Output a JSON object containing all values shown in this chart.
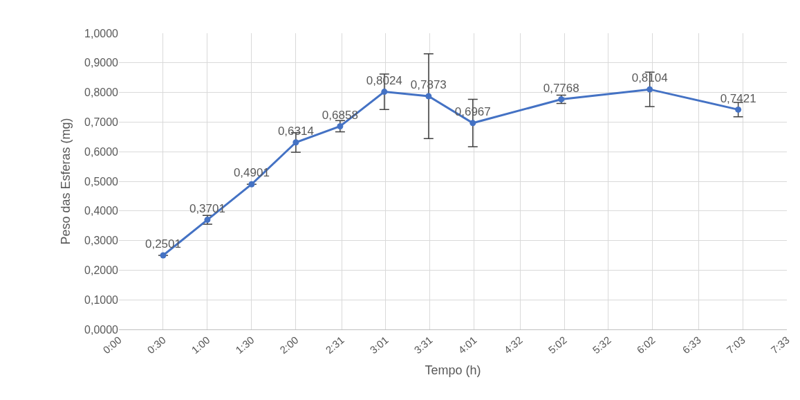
{
  "chart_data": {
    "type": "line",
    "xlabel": "Tempo (h)",
    "ylabel": "Peso das Esferas (mg)",
    "x": [
      0.5,
      1.0,
      1.5,
      2.0,
      2.5,
      3.0,
      3.5,
      4.0,
      5.0,
      6.0,
      7.0
    ],
    "values": [
      0.2501,
      0.3701,
      0.4901,
      0.6314,
      0.6858,
      0.8024,
      0.7873,
      0.6967,
      0.7768,
      0.8104,
      0.7421
    ],
    "errors": [
      null,
      0.015,
      null,
      0.033,
      0.019,
      0.06,
      0.143,
      0.08,
      0.014,
      0.058,
      0.024
    ],
    "value_labels": [
      "0,2501",
      "0,3701",
      "0,4901",
      "0,6314",
      "0,6858",
      "0,8024",
      "0,7873",
      "0,6967",
      "0,7768",
      "0,8104",
      "0,7421"
    ],
    "color": "#4472c4",
    "marker": "circle",
    "line_style": "solid",
    "grid": true,
    "xlim": [
      0,
      7.55
    ],
    "xticks": [
      {
        "value": 0,
        "label": "0:00"
      },
      {
        "value": 0.5,
        "label": "0:30"
      },
      {
        "value": 1,
        "label": "1:00"
      },
      {
        "value": 1.5,
        "label": "1:30"
      },
      {
        "value": 2,
        "label": "2:00"
      },
      {
        "value": 2.5167,
        "label": "2:31"
      },
      {
        "value": 3.0167,
        "label": "3:01"
      },
      {
        "value": 3.5167,
        "label": "3:31"
      },
      {
        "value": 4.0167,
        "label": "4:01"
      },
      {
        "value": 4.5333,
        "label": "4:32"
      },
      {
        "value": 5.0333,
        "label": "5:02"
      },
      {
        "value": 5.5333,
        "label": "5:32"
      },
      {
        "value": 6.0333,
        "label": "6:02"
      },
      {
        "value": 6.55,
        "label": "6:33"
      },
      {
        "value": 7.05,
        "label": "7:03"
      },
      {
        "value": 7.55,
        "label": "7:33"
      }
    ],
    "ylim": [
      0,
      1
    ],
    "yticks": [
      {
        "value": 0,
        "label": "0,0000"
      },
      {
        "value": 0.1,
        "label": "0,1000"
      },
      {
        "value": 0.2,
        "label": "0,2000"
      },
      {
        "value": 0.3,
        "label": "0,3000"
      },
      {
        "value": 0.4,
        "label": "0,4000"
      },
      {
        "value": 0.5,
        "label": "0,5000"
      },
      {
        "value": 0.6,
        "label": "0,6000"
      },
      {
        "value": 0.7,
        "label": "0,7000"
      },
      {
        "value": 0.8,
        "label": "0,8000"
      },
      {
        "value": 0.9,
        "label": "0,9000"
      },
      {
        "value": 1,
        "label": "1,0000"
      }
    ]
  }
}
